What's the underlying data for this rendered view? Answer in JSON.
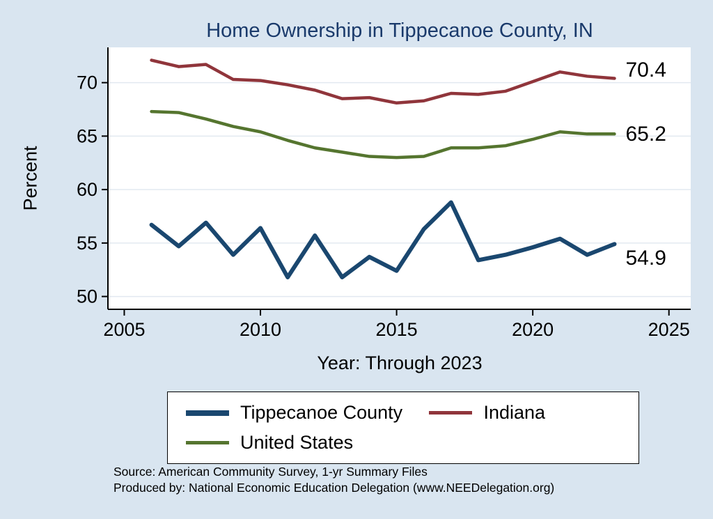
{
  "chart_data": {
    "type": "line",
    "title": "Home Ownership in Tippecanoe County, IN",
    "ylabel": "Percent",
    "xlabel": "Year: Through 2023",
    "x": [
      2006,
      2007,
      2008,
      2009,
      2010,
      2011,
      2012,
      2013,
      2014,
      2015,
      2016,
      2017,
      2018,
      2019,
      2020,
      2021,
      2022,
      2023
    ],
    "series": [
      {
        "name": "Tippecanoe County",
        "color": "#1a476f",
        "end_label": "54.9",
        "values": [
          56.7,
          54.7,
          56.9,
          53.9,
          56.4,
          51.8,
          55.7,
          51.8,
          53.7,
          52.4,
          56.3,
          58.8,
          53.4,
          53.9,
          54.6,
          55.4,
          53.9,
          54.9
        ]
      },
      {
        "name": "Indiana",
        "color": "#90353b",
        "end_label": "70.4",
        "values": [
          72.1,
          71.5,
          71.7,
          70.3,
          70.2,
          69.8,
          69.3,
          68.5,
          68.6,
          68.1,
          68.3,
          69.0,
          68.9,
          69.2,
          70.1,
          71.0,
          70.6,
          70.4
        ]
      },
      {
        "name": "United States",
        "color": "#55752f",
        "end_label": "65.2",
        "values": [
          67.3,
          67.2,
          66.6,
          65.9,
          65.4,
          64.6,
          63.9,
          63.5,
          63.1,
          63.0,
          63.1,
          63.9,
          63.9,
          64.1,
          64.7,
          65.4,
          65.2,
          65.2
        ]
      }
    ],
    "yticks": [
      50,
      55,
      60,
      65,
      70
    ],
    "xticks": [
      2005,
      2010,
      2015,
      2020,
      2025
    ],
    "ylim": [
      48.8,
      73.3
    ],
    "xlim": [
      2004.4,
      2025.8
    ],
    "grid": true,
    "legend_position": "bottom",
    "background_color": "#d9e5f0",
    "plot_background_color": "#ffffff",
    "title_color": "#1a3a6b"
  },
  "footer": {
    "source_line1": "Source: American Community Survey, 1-yr Summary Files",
    "source_line2": "Produced by: National Economic Education Delegation (www.NEEDelegation.org)"
  }
}
